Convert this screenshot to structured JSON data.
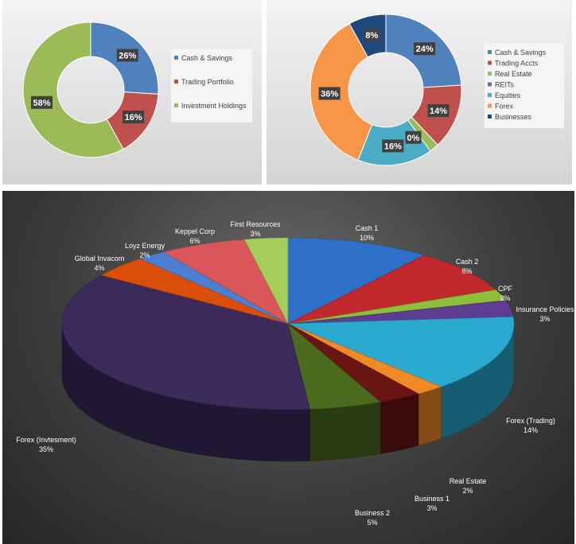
{
  "chart_data": [
    {
      "type": "pie",
      "variant": "donut",
      "legend": "right",
      "categories": [
        "Cash & Savings",
        "Trading Portfolio",
        "Investment Holdings"
      ],
      "values": [
        26,
        16,
        58
      ],
      "labels": [
        "26%",
        "16%",
        "58%"
      ],
      "colors": [
        "#4f81bd",
        "#c0504d",
        "#9bbb59"
      ]
    },
    {
      "type": "pie",
      "variant": "donut",
      "legend": "right",
      "categories": [
        "Cash & Savings",
        "Trading Accts",
        "Real Estate",
        "REITs",
        "Equities",
        "Forex",
        "Businesses"
      ],
      "values": [
        24,
        14,
        2,
        0,
        16,
        36,
        8
      ],
      "labels": [
        "24%",
        "14%",
        "",
        "0%",
        "16%",
        "36%",
        "8%"
      ],
      "colors": [
        "#4f81bd",
        "#c0504d",
        "#9bbb59",
        "#8064a2",
        "#4bacc6",
        "#f79646",
        "#1f497d"
      ]
    },
    {
      "type": "pie",
      "variant": "3d",
      "legend": "none",
      "categories": [
        "Cash 1",
        "Cash 2",
        "CPF",
        "Insurance Policies",
        "Forex (Trading)",
        "Real Estate",
        "Business 1",
        "Business 2",
        "Forex (Invtesment)",
        "Global Invacom",
        "Loyz Energy",
        "Keppel Corp",
        "First Resources"
      ],
      "values": [
        10,
        8,
        2,
        3,
        14,
        2,
        3,
        5,
        35,
        4,
        2,
        6,
        3
      ],
      "labels": [
        "10%",
        "8%",
        "2%",
        "3%",
        "14%",
        "2%",
        "3%",
        "5%",
        "35%",
        "4%",
        "2%",
        "6%",
        "3%"
      ],
      "colors": [
        "#2e6fc7",
        "#c0282c",
        "#8ebf3c",
        "#5d3d8f",
        "#2aa9cf",
        "#f08a24",
        "#6b1414",
        "#4a6b1d",
        "#3b2a5a",
        "#d94f0a",
        "#4a7fd1",
        "#d9575a",
        "#a6cc5a"
      ]
    }
  ]
}
